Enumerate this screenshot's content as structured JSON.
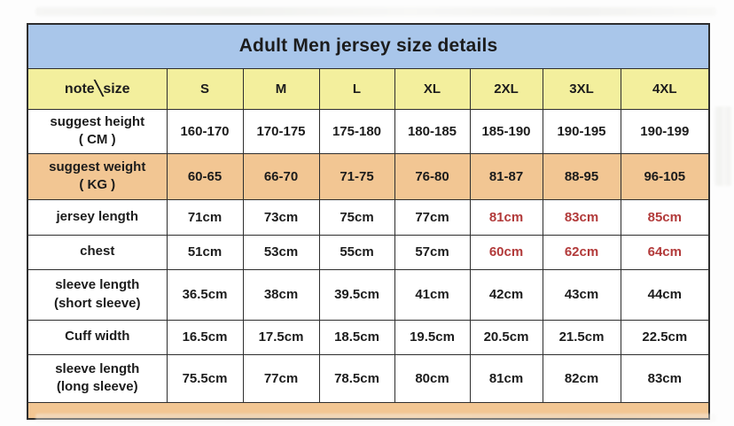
{
  "title": "Adult Men jersey size details",
  "table": {
    "corner_label": "note╲size",
    "sizes": [
      "S",
      "M",
      "L",
      "XL",
      "2XL",
      "3XL",
      "4XL"
    ],
    "rows": [
      {
        "label": "suggest height\n( CM )",
        "values": [
          "160-170",
          "170-175",
          "175-180",
          "180-185",
          "185-190",
          "190-195",
          "190-199"
        ],
        "highlight": false,
        "red_indices": []
      },
      {
        "label": "suggest weight\n( KG )",
        "values": [
          "60-65",
          "66-70",
          "71-75",
          "76-80",
          "81-87",
          "88-95",
          "96-105"
        ],
        "highlight": true,
        "red_indices": []
      },
      {
        "label": "jersey length",
        "values": [
          "71cm",
          "73cm",
          "75cm",
          "77cm",
          "81cm",
          "83cm",
          "85cm"
        ],
        "highlight": false,
        "red_indices": [
          4,
          5,
          6
        ]
      },
      {
        "label": "chest",
        "values": [
          "51cm",
          "53cm",
          "55cm",
          "57cm",
          "60cm",
          "62cm",
          "64cm"
        ],
        "highlight": false,
        "red_indices": [
          4,
          5,
          6
        ]
      },
      {
        "label": "sleeve length\n(short sleeve)",
        "values": [
          "36.5cm",
          "38cm",
          "39.5cm",
          "41cm",
          "42cm",
          "43cm",
          "44cm"
        ],
        "highlight": false,
        "red_indices": []
      },
      {
        "label": "Cuff width",
        "values": [
          "16.5cm",
          "17.5cm",
          "18.5cm",
          "19.5cm",
          "20.5cm",
          "21.5cm",
          "22.5cm"
        ],
        "highlight": false,
        "red_indices": []
      },
      {
        "label": "sleeve length\n(long sleeve)",
        "values": [
          "75.5cm",
          "77cm",
          "78.5cm",
          "80cm",
          "81cm",
          "82cm",
          "83cm"
        ],
        "highlight": false,
        "red_indices": []
      }
    ],
    "truncated_bottom_row": true
  },
  "colors": {
    "title_bg": "#a9c6ea",
    "header_bg": "#f3ef9d",
    "highlight_bg": "#f2c693",
    "red_text": "#b23a3a",
    "text": "#1c1c1c",
    "border": "#2e2e2e"
  }
}
